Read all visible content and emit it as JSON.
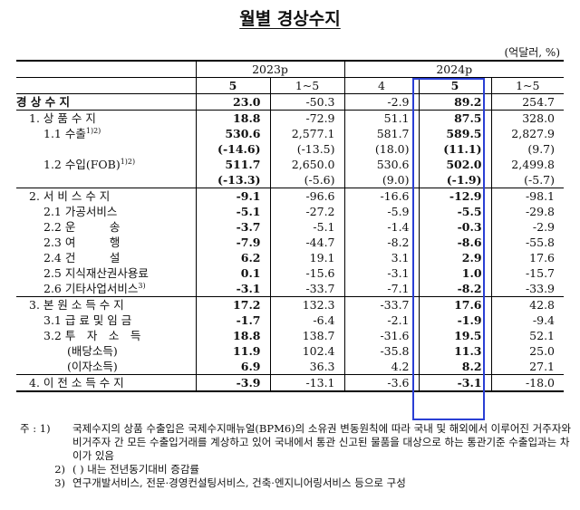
{
  "title": "월별 경상수지",
  "unit": "(억달러, %)",
  "header": {
    "years": [
      "2023p",
      "2024p"
    ],
    "cols": [
      "5",
      "1~5",
      "4",
      "5",
      "1~5"
    ]
  },
  "rows": [
    {
      "label": "경 상 수 지",
      "bold": true,
      "indent": 0,
      "vals": [
        "23.0",
        "-50.3",
        "-2.9",
        "89.2",
        "254.7"
      ],
      "group": true
    },
    {
      "label": "1. 상 품 수 지",
      "indent": 1,
      "vals": [
        "18.8",
        "-72.9",
        "51.1",
        "87.5",
        "328.0"
      ],
      "group": true
    },
    {
      "label": "1.1 수출",
      "sup": "1)2)",
      "indent": 2,
      "vals": [
        "530.6",
        "2,577.1",
        "581.7",
        "589.5",
        "2,827.9"
      ]
    },
    {
      "label": "",
      "indent": 2,
      "vals": [
        "(-14.6)",
        "(-13.5)",
        "(18.0)",
        "(11.1)",
        "(9.7)"
      ]
    },
    {
      "label": "1.2 수입(FOB)",
      "sup": "1)2)",
      "indent": 2,
      "vals": [
        "511.7",
        "2,650.0",
        "530.6",
        "502.0",
        "2,499.8"
      ]
    },
    {
      "label": "",
      "indent": 2,
      "vals": [
        "(-13.3)",
        "(-5.6)",
        "(9.0)",
        "(-1.9)",
        "(-5.7)"
      ]
    },
    {
      "label": "2. 서 비 스 수 지",
      "indent": 1,
      "vals": [
        "-9.1",
        "-96.6",
        "-16.6",
        "-12.9",
        "-98.1"
      ],
      "group": true
    },
    {
      "label": "2.1 가공서비스",
      "indent": 2,
      "vals": [
        "-5.1",
        "-27.2",
        "-5.9",
        "-5.5",
        "-29.8"
      ]
    },
    {
      "label": "2.2 운　　　송",
      "indent": 2,
      "vals": [
        "-3.7",
        "-5.1",
        "-1.4",
        "-0.3",
        "-2.9"
      ]
    },
    {
      "label": "2.3 여　　　행",
      "indent": 2,
      "vals": [
        "-7.9",
        "-44.7",
        "-8.2",
        "-8.6",
        "-55.8"
      ]
    },
    {
      "label": "2.4 건　　　설",
      "indent": 2,
      "vals": [
        "6.2",
        "19.1",
        "3.1",
        "2.9",
        "17.6"
      ]
    },
    {
      "label": "2.5 지식재산권사용료",
      "indent": 2,
      "vals": [
        "0.1",
        "-15.6",
        "-3.1",
        "1.0",
        "-15.7"
      ]
    },
    {
      "label": "2.6 기타사업서비스",
      "sup": "3)",
      "indent": 2,
      "vals": [
        "-3.1",
        "-33.7",
        "-7.1",
        "-8.2",
        "-33.9"
      ]
    },
    {
      "label": "3. 본 원 소 득 수 지",
      "indent": 1,
      "vals": [
        "17.2",
        "132.3",
        "-33.7",
        "17.6",
        "42.8"
      ],
      "group": true
    },
    {
      "label": "3.1 급 료 및 임 금",
      "indent": 2,
      "vals": [
        "-1.7",
        "-6.4",
        "-2.1",
        "-1.9",
        "-9.4"
      ]
    },
    {
      "label": "3.2 투　자　소　득",
      "indent": 2,
      "vals": [
        "18.8",
        "138.7",
        "-31.6",
        "19.5",
        "52.1"
      ]
    },
    {
      "label": "(배당소득)",
      "indent": 3,
      "vals": [
        "11.9",
        "102.4",
        "-35.8",
        "11.3",
        "25.0"
      ]
    },
    {
      "label": "(이자소득)",
      "indent": 3,
      "vals": [
        "6.9",
        "36.3",
        "4.2",
        "8.2",
        "27.1"
      ]
    },
    {
      "label": "4. 이 전 소 득 수 지",
      "indent": 1,
      "vals": [
        "-3.9",
        "-13.1",
        "-3.6",
        "-3.1",
        "-18.0"
      ],
      "group": true
    }
  ],
  "notes": [
    {
      "key": "주 : 1)",
      "text": "국제수지의 상품 수출입은 국제수지매뉴얼(BPM6)의 소유권 변동원칙에 따라 국내 및 해외에서 이루어진 거주자와 비거주자 간 모든 수출입거래를 계상하고 있어 국내에서 통관 신고된 물품을 대상으로 하는 통관기준 수출입과는 차이가 있음"
    },
    {
      "key": "2)",
      "text": "(  ) 내는 전년동기대비 증감률"
    },
    {
      "key": "3)",
      "text": "연구개발서비스, 전문·경영컨설팅서비스, 건축·엔지니어링서비스 등으로 구성"
    }
  ]
}
